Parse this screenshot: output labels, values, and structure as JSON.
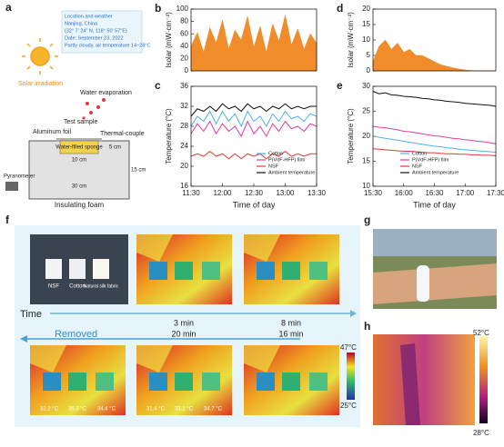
{
  "chart_data": [
    {
      "type": "area",
      "panel": "b",
      "ylabel": "Isolar (mW·cm⁻²)",
      "color": "#f08c2a",
      "x": [
        "11:30",
        "11:36",
        "11:42",
        "11:48",
        "11:54",
        "12:00",
        "12:06",
        "12:12",
        "12:18",
        "12:24",
        "12:30",
        "12:36",
        "12:42",
        "12:48",
        "12:54",
        "13:00",
        "13:06",
        "13:12",
        "13:18",
        "13:24",
        "13:30"
      ],
      "values": [
        40,
        62,
        30,
        70,
        45,
        82,
        35,
        66,
        50,
        88,
        38,
        72,
        30,
        76,
        48,
        90,
        42,
        68,
        35,
        60,
        45
      ],
      "xlim": [
        "11:30",
        "13:30"
      ],
      "ylim": [
        0,
        100
      ],
      "yticks": [
        0,
        20,
        40,
        60,
        80,
        100
      ]
    },
    {
      "type": "line",
      "panel": "c",
      "ylabel": "Temperature (°C)",
      "xlabel": "Time of day",
      "x": [
        "11:30",
        "11:36",
        "11:42",
        "11:48",
        "11:54",
        "12:00",
        "12:06",
        "12:12",
        "12:18",
        "12:24",
        "12:30",
        "12:36",
        "12:42",
        "12:48",
        "12:54",
        "13:00",
        "13:06",
        "13:12",
        "13:18",
        "13:24",
        "13:30"
      ],
      "series": [
        {
          "name": "Cotton",
          "color": "#4fb3e8",
          "values": [
            28,
            30,
            29,
            31,
            28.5,
            31,
            29,
            30.5,
            28,
            31,
            29,
            30,
            28,
            30.5,
            29,
            31,
            29.5,
            30,
            29,
            30.5,
            30
          ]
        },
        {
          "name": "P(VdF-HFP) film",
          "color": "#e0409a",
          "values": [
            26.5,
            28.5,
            27,
            29,
            26.5,
            28.5,
            27,
            28,
            26,
            29,
            26.5,
            28,
            26,
            28.5,
            27,
            29,
            27.5,
            28,
            27,
            28.5,
            28
          ]
        },
        {
          "name": "NSF",
          "color": "#e23a3a",
          "values": [
            22,
            22.5,
            22,
            23,
            22,
            22.5,
            21.5,
            22.5,
            21.5,
            22.5,
            22,
            22.5,
            21.5,
            22.5,
            22,
            23,
            22,
            22.5,
            22,
            22.5,
            22.5
          ]
        },
        {
          "name": "Ambient temperature",
          "color": "#111111",
          "values": [
            30,
            31.5,
            31,
            32,
            31,
            32.5,
            31.5,
            32,
            31,
            32.5,
            31.5,
            32,
            31,
            32,
            31.5,
            32.5,
            31.5,
            32,
            31.5,
            32,
            32
          ]
        }
      ],
      "xlim": [
        "11:30",
        "13:30"
      ],
      "xticks": [
        "11:30",
        "12:00",
        "12:30",
        "13:00",
        "13:30"
      ],
      "ylim": [
        16,
        36
      ],
      "yticks": [
        16,
        20,
        24,
        28,
        32,
        36
      ]
    },
    {
      "type": "area",
      "panel": "d",
      "ylabel": "Isolar (mW·cm⁻²)",
      "color": "#f08c2a",
      "x": [
        "15:30",
        "15:36",
        "15:42",
        "15:48",
        "15:54",
        "16:00",
        "16:06",
        "16:12",
        "16:18",
        "16:24",
        "16:30",
        "16:36",
        "16:42",
        "16:48",
        "16:54",
        "17:00",
        "17:06",
        "17:12",
        "17:18",
        "17:24",
        "17:30"
      ],
      "values": [
        3,
        8,
        10,
        7,
        9,
        6,
        7,
        5,
        5,
        4,
        3,
        2,
        1.5,
        1,
        0.6,
        0.3,
        0.1,
        0,
        0,
        0,
        0
      ],
      "xlim": [
        "15:30",
        "17:30"
      ],
      "ylim": [
        0,
        20
      ],
      "yticks": [
        0,
        5,
        10,
        15,
        20
      ]
    },
    {
      "type": "line",
      "panel": "e",
      "ylabel": "Temperature (°C)",
      "xlabel": "Time of day",
      "x": [
        "15:30",
        "15:36",
        "15:42",
        "15:48",
        "15:54",
        "16:00",
        "16:06",
        "16:12",
        "16:18",
        "16:24",
        "16:30",
        "16:36",
        "16:42",
        "16:48",
        "16:54",
        "17:00",
        "17:06",
        "17:12",
        "17:18",
        "17:24",
        "17:30"
      ],
      "series": [
        {
          "name": "Cotton",
          "color": "#4fb3e8",
          "values": [
            20,
            19.8,
            19.6,
            19.4,
            19.2,
            19,
            18.8,
            18.6,
            18.4,
            18.2,
            18,
            17.9,
            17.7,
            17.6,
            17.4,
            17.3,
            17.2,
            17.1,
            17,
            16.9,
            16.8
          ]
        },
        {
          "name": "P(VdF-HFP) film",
          "color": "#e0409a",
          "values": [
            22,
            21.8,
            21.7,
            21.5,
            21.3,
            21,
            20.9,
            20.7,
            20.5,
            20.3,
            20.1,
            20,
            19.8,
            19.6,
            19.5,
            19.3,
            19.2,
            19,
            18.9,
            18.7,
            18.5
          ]
        },
        {
          "name": "NSF",
          "color": "#e23a3a",
          "values": [
            17.5,
            17.4,
            17.3,
            17.2,
            17.1,
            17,
            17,
            16.9,
            16.8,
            16.7,
            16.7,
            16.6,
            16.5,
            16.5,
            16.4,
            16.4,
            16.3,
            16.3,
            16.2,
            16.2,
            16.1
          ]
        },
        {
          "name": "Ambient temperature",
          "color": "#111111",
          "values": [
            29,
            28.5,
            28.7,
            28.3,
            28.2,
            28,
            27.9,
            27.8,
            27.6,
            27.5,
            27.3,
            27.2,
            27,
            26.9,
            26.8,
            26.6,
            26.5,
            26.4,
            26.3,
            26.2,
            26
          ]
        }
      ],
      "xlim": [
        "15:30",
        "17:30"
      ],
      "xticks": [
        "15:30",
        "16:00",
        "16:30",
        "17:00",
        "17:30"
      ],
      "ylim": [
        10,
        30
      ],
      "yticks": [
        10,
        15,
        20,
        25,
        30
      ]
    }
  ],
  "panel_a": {
    "label": "a",
    "info": [
      "Location and weather",
      "Nanjing, China",
      "(32° 7' 24\" N, 118° 50' 57\"E)",
      "Date: September 23, 2022",
      "Partly cloudy, air temperature 14~28°C"
    ],
    "solar": "Solar irradiation",
    "evaporation": "Water evaporation",
    "test_sample": "Test sample",
    "foil": "Aluminum foil",
    "thermocouple": "Thermal-couple",
    "sponge": "Water-filled sponge",
    "inner_width": "10 cm",
    "outer_width": "30 cm",
    "depth": "5 cm",
    "height": "15 cm",
    "pyranometer": "Pyranometer",
    "foam": "Insulating foam"
  },
  "panel_f": {
    "label": "f",
    "fabrics": [
      "NSF",
      "Cotton",
      "Natural silk fabric"
    ],
    "time": "Time",
    "times_top": [
      "3 min",
      "8 min"
    ],
    "removed": "Removed",
    "times_bottom": [
      "20 min",
      "16 min"
    ],
    "temps": [
      [
        "32.2 °C",
        "36.3 °C",
        "34.4 °C"
      ],
      [
        "31.4 °C",
        "33.1 °C",
        "34.7 °C"
      ]
    ],
    "scale_max": "47°C",
    "scale_min": "25°C"
  },
  "panel_g": {
    "label": "g"
  },
  "panel_h": {
    "label": "h",
    "scale_max": "52°C",
    "scale_min": "28°C"
  }
}
